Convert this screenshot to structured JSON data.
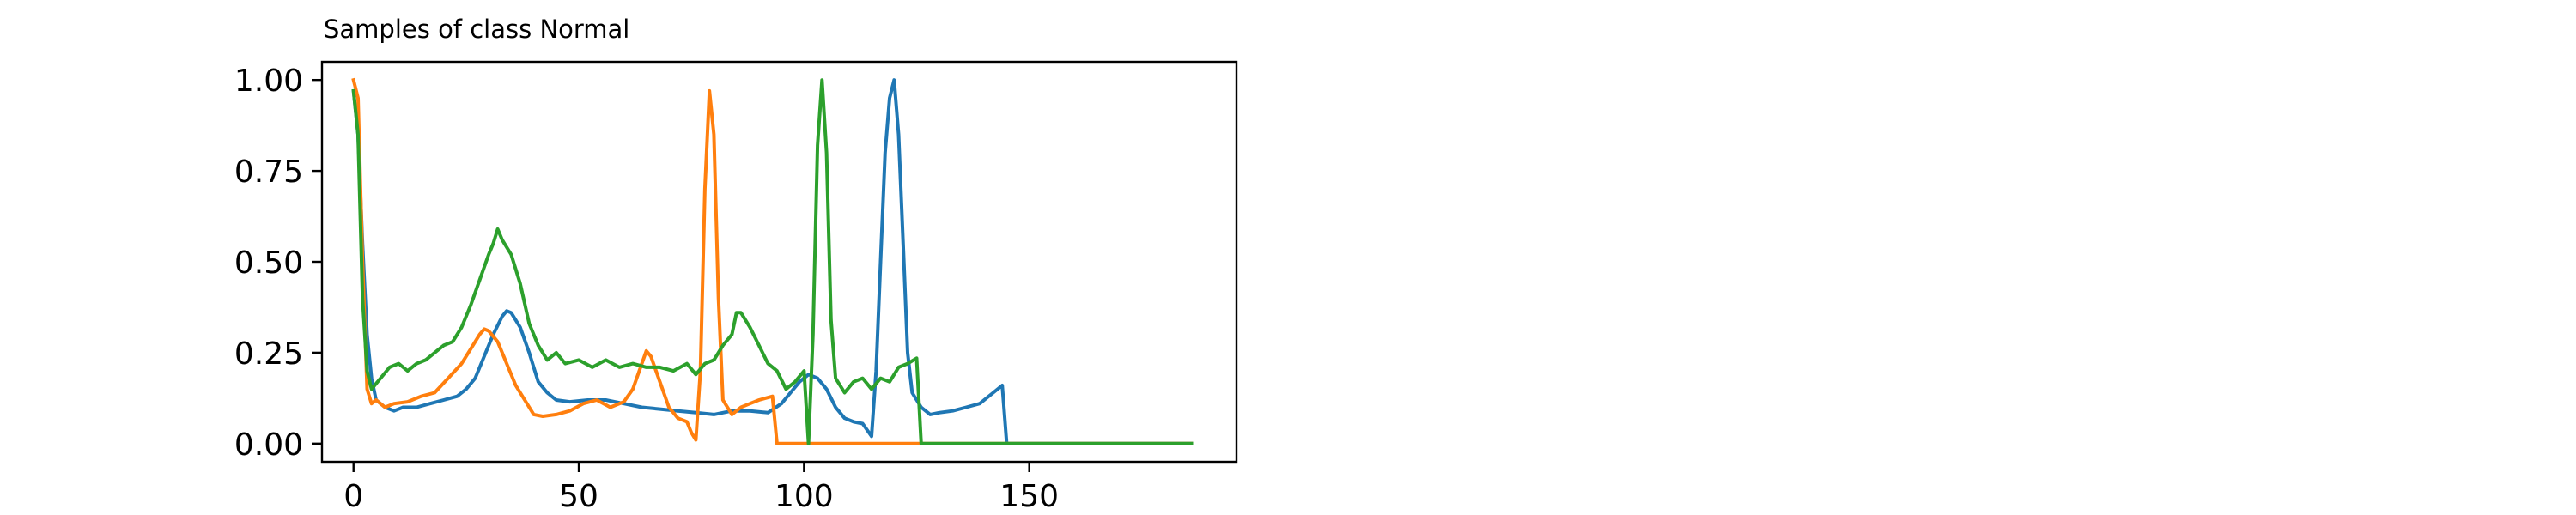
{
  "chart_data": {
    "type": "line",
    "title": "Samples of class Normal",
    "xlabel": "",
    "ylabel": "",
    "xlim": [
      -7,
      196
    ],
    "ylim": [
      -0.05,
      1.05
    ],
    "xticks": [
      {
        "value": 0,
        "label": "0"
      },
      {
        "value": 50,
        "label": "50"
      },
      {
        "value": 100,
        "label": "100"
      },
      {
        "value": 150,
        "label": "150"
      }
    ],
    "yticks": [
      {
        "value": 0.0,
        "label": "0.00"
      },
      {
        "value": 0.25,
        "label": "0.25"
      },
      {
        "value": 0.5,
        "label": "0.50"
      },
      {
        "value": 0.75,
        "label": "0.75"
      },
      {
        "value": 1.0,
        "label": "1.00"
      }
    ],
    "grid": false,
    "legend": "none",
    "series": [
      {
        "color": "#1f77b4",
        "points": [
          [
            0,
            0.97
          ],
          [
            1,
            0.85
          ],
          [
            2,
            0.55
          ],
          [
            3,
            0.3
          ],
          [
            4,
            0.18
          ],
          [
            5,
            0.12
          ],
          [
            7,
            0.1
          ],
          [
            9,
            0.09
          ],
          [
            11,
            0.1
          ],
          [
            14,
            0.1
          ],
          [
            17,
            0.11
          ],
          [
            20,
            0.12
          ],
          [
            23,
            0.13
          ],
          [
            25,
            0.15
          ],
          [
            27,
            0.18
          ],
          [
            29,
            0.24
          ],
          [
            31,
            0.3
          ],
          [
            33,
            0.35
          ],
          [
            34,
            0.365
          ],
          [
            35,
            0.36
          ],
          [
            37,
            0.32
          ],
          [
            39,
            0.25
          ],
          [
            41,
            0.17
          ],
          [
            43,
            0.14
          ],
          [
            45,
            0.12
          ],
          [
            48,
            0.115
          ],
          [
            52,
            0.12
          ],
          [
            56,
            0.12
          ],
          [
            60,
            0.11
          ],
          [
            64,
            0.1
          ],
          [
            68,
            0.095
          ],
          [
            72,
            0.09
          ],
          [
            76,
            0.085
          ],
          [
            80,
            0.08
          ],
          [
            84,
            0.09
          ],
          [
            88,
            0.09
          ],
          [
            92,
            0.085
          ],
          [
            95,
            0.11
          ],
          [
            97,
            0.14
          ],
          [
            99,
            0.17
          ],
          [
            101,
            0.19
          ],
          [
            103,
            0.18
          ],
          [
            105,
            0.15
          ],
          [
            107,
            0.1
          ],
          [
            109,
            0.07
          ],
          [
            111,
            0.06
          ],
          [
            113,
            0.055
          ],
          [
            115,
            0.02
          ],
          [
            116,
            0.2
          ],
          [
            117,
            0.5
          ],
          [
            118,
            0.8
          ],
          [
            119,
            0.95
          ],
          [
            120,
            1.0
          ],
          [
            121,
            0.85
          ],
          [
            122,
            0.55
          ],
          [
            123,
            0.25
          ],
          [
            124,
            0.14
          ],
          [
            126,
            0.1
          ],
          [
            128,
            0.08
          ],
          [
            130,
            0.085
          ],
          [
            133,
            0.09
          ],
          [
            136,
            0.1
          ],
          [
            139,
            0.11
          ],
          [
            142,
            0.14
          ],
          [
            144,
            0.16
          ],
          [
            145,
            0.0
          ],
          [
            186,
            0.0
          ]
        ]
      },
      {
        "color": "#ff7f0e",
        "points": [
          [
            0,
            1.0
          ],
          [
            1,
            0.95
          ],
          [
            2,
            0.5
          ],
          [
            3,
            0.15
          ],
          [
            4,
            0.11
          ],
          [
            5,
            0.12
          ],
          [
            7,
            0.1
          ],
          [
            9,
            0.11
          ],
          [
            12,
            0.115
          ],
          [
            15,
            0.13
          ],
          [
            18,
            0.14
          ],
          [
            21,
            0.18
          ],
          [
            24,
            0.22
          ],
          [
            26,
            0.26
          ],
          [
            28,
            0.3
          ],
          [
            29,
            0.315
          ],
          [
            30,
            0.31
          ],
          [
            32,
            0.28
          ],
          [
            34,
            0.22
          ],
          [
            36,
            0.16
          ],
          [
            38,
            0.12
          ],
          [
            40,
            0.08
          ],
          [
            42,
            0.075
          ],
          [
            45,
            0.08
          ],
          [
            48,
            0.09
          ],
          [
            51,
            0.11
          ],
          [
            54,
            0.12
          ],
          [
            57,
            0.1
          ],
          [
            60,
            0.115
          ],
          [
            62,
            0.15
          ],
          [
            64,
            0.22
          ],
          [
            65,
            0.255
          ],
          [
            66,
            0.24
          ],
          [
            68,
            0.17
          ],
          [
            70,
            0.1
          ],
          [
            72,
            0.07
          ],
          [
            74,
            0.06
          ],
          [
            75,
            0.03
          ],
          [
            76,
            0.01
          ],
          [
            77,
            0.2
          ],
          [
            78,
            0.7
          ],
          [
            79,
            0.97
          ],
          [
            80,
            0.85
          ],
          [
            81,
            0.4
          ],
          [
            82,
            0.12
          ],
          [
            84,
            0.08
          ],
          [
            86,
            0.1
          ],
          [
            88,
            0.11
          ],
          [
            90,
            0.12
          ],
          [
            93,
            0.13
          ],
          [
            94,
            0.0
          ],
          [
            186,
            0.0
          ]
        ]
      },
      {
        "color": "#2ca02c",
        "points": [
          [
            0,
            0.97
          ],
          [
            1,
            0.85
          ],
          [
            2,
            0.4
          ],
          [
            3,
            0.2
          ],
          [
            4,
            0.15
          ],
          [
            6,
            0.18
          ],
          [
            8,
            0.21
          ],
          [
            10,
            0.22
          ],
          [
            12,
            0.2
          ],
          [
            14,
            0.22
          ],
          [
            16,
            0.23
          ],
          [
            18,
            0.25
          ],
          [
            20,
            0.27
          ],
          [
            22,
            0.28
          ],
          [
            24,
            0.32
          ],
          [
            26,
            0.38
          ],
          [
            28,
            0.45
          ],
          [
            30,
            0.52
          ],
          [
            31,
            0.55
          ],
          [
            32,
            0.59
          ],
          [
            33,
            0.56
          ],
          [
            35,
            0.52
          ],
          [
            37,
            0.44
          ],
          [
            39,
            0.33
          ],
          [
            41,
            0.27
          ],
          [
            43,
            0.23
          ],
          [
            45,
            0.25
          ],
          [
            47,
            0.22
          ],
          [
            50,
            0.23
          ],
          [
            53,
            0.21
          ],
          [
            56,
            0.23
          ],
          [
            59,
            0.21
          ],
          [
            62,
            0.22
          ],
          [
            65,
            0.21
          ],
          [
            68,
            0.21
          ],
          [
            71,
            0.2
          ],
          [
            74,
            0.22
          ],
          [
            76,
            0.19
          ],
          [
            78,
            0.22
          ],
          [
            80,
            0.23
          ],
          [
            82,
            0.27
          ],
          [
            84,
            0.3
          ],
          [
            85,
            0.36
          ],
          [
            86,
            0.36
          ],
          [
            88,
            0.32
          ],
          [
            90,
            0.27
          ],
          [
            92,
            0.22
          ],
          [
            94,
            0.2
          ],
          [
            96,
            0.15
          ],
          [
            98,
            0.17
          ],
          [
            100,
            0.2
          ],
          [
            101,
            0.0
          ],
          [
            102,
            0.3
          ],
          [
            103,
            0.82
          ],
          [
            104,
            1.0
          ],
          [
            105,
            0.8
          ],
          [
            106,
            0.34
          ],
          [
            107,
            0.18
          ],
          [
            109,
            0.14
          ],
          [
            111,
            0.17
          ],
          [
            113,
            0.18
          ],
          [
            115,
            0.15
          ],
          [
            117,
            0.18
          ],
          [
            119,
            0.17
          ],
          [
            121,
            0.21
          ],
          [
            123,
            0.22
          ],
          [
            125,
            0.235
          ],
          [
            126,
            0.0
          ],
          [
            186,
            0.0
          ]
        ]
      }
    ]
  }
}
